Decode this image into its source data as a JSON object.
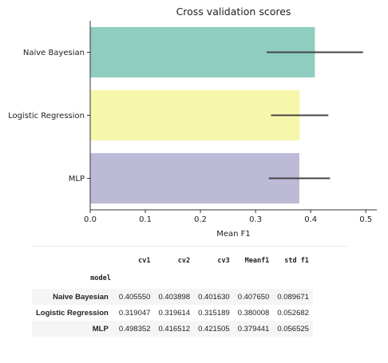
{
  "chart_data": {
    "type": "bar",
    "orientation": "horizontal",
    "title": "Cross validation scores",
    "xlabel": "Mean F1",
    "ylabel": "",
    "categories": [
      "Naive Bayesian",
      "Logistic Regression",
      "MLP"
    ],
    "values": [
      0.40765,
      0.380008,
      0.379441
    ],
    "error_bars": [
      [
        0.32,
        0.495
      ],
      [
        0.328,
        0.432
      ],
      [
        0.324,
        0.435
      ]
    ],
    "xlim": [
      0.0,
      0.52
    ],
    "xticks": [
      "0.0",
      "0.1",
      "0.2",
      "0.3",
      "0.4",
      "0.5"
    ],
    "colors": [
      "#8fcdc0",
      "#f7f7ac",
      "#bdbad8"
    ],
    "error_color": "#444444",
    "grid": false
  },
  "table": {
    "columns": [
      "cv1",
      "cv2",
      "cv3",
      "Meanf1",
      "std f1"
    ],
    "index_name": "model",
    "rows": [
      {
        "model": "Naive Bayesian",
        "values": [
          "0.405550",
          "0.403898",
          "0.401630",
          "0.407650",
          "0.089671"
        ]
      },
      {
        "model": "Logistic Regression",
        "values": [
          "0.319047",
          "0.319614",
          "0.315189",
          "0.380008",
          "0.052682"
        ]
      },
      {
        "model": "MLP",
        "values": [
          "0.498352",
          "0.416512",
          "0.421505",
          "0.379441",
          "0.056525"
        ]
      }
    ]
  }
}
